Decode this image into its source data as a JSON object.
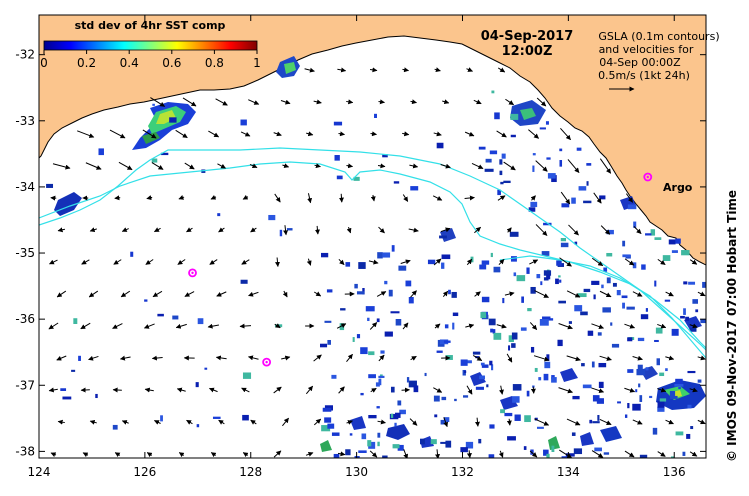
{
  "map": {
    "date_line": "04-Sep-2017",
    "time_line": "12:00Z",
    "x_ticks": [
      "124",
      "126",
      "128",
      "130",
      "132",
      "134",
      "136"
    ],
    "y_ticks": [
      "-32",
      "-33",
      "-34",
      "-35",
      "-36",
      "-37",
      "-38"
    ],
    "lon_range": [
      124,
      136.6
    ],
    "lat_range": [
      -31.4,
      -38.1
    ]
  },
  "colorbar": {
    "title": "std dev of 4hr SST comp",
    "ticks": [
      "0",
      "0.2",
      "0.4",
      "0.6",
      "0.8",
      "1"
    ],
    "range": [
      0,
      1
    ],
    "colormap": "jet"
  },
  "legend": {
    "line1": "GSLA (0.1m contours)",
    "line2": "and velocities for",
    "line3": "04-Sep 00:00Z",
    "line4": "0.5m/s (1kt 24h)"
  },
  "argo": {
    "label": "Argo",
    "floats": [
      {
        "lon": 135.5,
        "lat": -33.85,
        "labeled": true
      },
      {
        "lon": 126.9,
        "lat": -35.3,
        "labeled": false
      },
      {
        "lon": 128.3,
        "lat": -36.65,
        "labeled": false
      }
    ]
  },
  "credit": "© IMOS 09-Nov-2017 07:00 Hobart Time",
  "colors": {
    "land": "#fbc58d",
    "ocean": "#ffffff",
    "contour": "#33e0e8",
    "argo_marker": "#ff00ff",
    "arrow": "#000000"
  }
}
